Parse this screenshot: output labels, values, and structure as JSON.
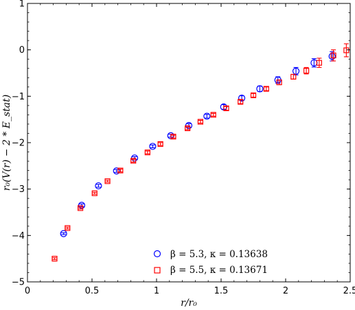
{
  "chart_data": {
    "type": "scatter",
    "title": "",
    "xlabel": "r/r₀",
    "ylabel": "r₀(V(r) − 2 * E_stat)",
    "xlim": [
      0,
      2.5
    ],
    "ylim": [
      -5,
      1
    ],
    "xticks": [
      0,
      0.5,
      1,
      1.5,
      2,
      2.5
    ],
    "xtick_labels": [
      "0",
      "0.5",
      "1",
      "1.5",
      "2",
      "2.5"
    ],
    "yticks": [
      -5,
      -4,
      -3,
      -2,
      -1,
      0,
      1
    ],
    "ytick_labels": [
      "−5",
      "−4",
      "−3",
      "−2",
      "−1",
      "0",
      "1"
    ],
    "grid": false,
    "legend_position": "bottom-center",
    "series": [
      {
        "name": "β = 5.3, κ = 0.13638",
        "marker": "circle",
        "color": "#0000ff",
        "points": [
          {
            "x": 0.28,
            "y": -3.96,
            "err": 0.02
          },
          {
            "x": 0.42,
            "y": -3.35,
            "err": 0.03
          },
          {
            "x": 0.55,
            "y": -2.93,
            "err": 0.03
          },
          {
            "x": 0.69,
            "y": -2.61,
            "err": 0.03
          },
          {
            "x": 0.83,
            "y": -2.33,
            "err": 0.03
          },
          {
            "x": 0.97,
            "y": -2.08,
            "err": 0.03
          },
          {
            "x": 1.11,
            "y": -1.85,
            "err": 0.03
          },
          {
            "x": 1.25,
            "y": -1.63,
            "err": 0.04
          },
          {
            "x": 1.39,
            "y": -1.43,
            "err": 0.04
          },
          {
            "x": 1.52,
            "y": -1.23,
            "err": 0.05
          },
          {
            "x": 1.66,
            "y": -1.04,
            "err": 0.05
          },
          {
            "x": 1.8,
            "y": -0.84,
            "err": 0.06
          },
          {
            "x": 1.94,
            "y": -0.65,
            "err": 0.07
          },
          {
            "x": 2.08,
            "y": -0.46,
            "err": 0.08
          },
          {
            "x": 2.22,
            "y": -0.28,
            "err": 0.09
          },
          {
            "x": 2.36,
            "y": -0.14,
            "err": 0.1
          }
        ]
      },
      {
        "name": "β = 5.5, κ = 0.13671",
        "marker": "square",
        "color": "#ff0000",
        "points": [
          {
            "x": 0.21,
            "y": -4.5,
            "err": 0.02
          },
          {
            "x": 0.31,
            "y": -3.84,
            "err": 0.02
          },
          {
            "x": 0.41,
            "y": -3.41,
            "err": 0.02
          },
          {
            "x": 0.52,
            "y": -3.09,
            "err": 0.02
          },
          {
            "x": 0.62,
            "y": -2.83,
            "err": 0.02
          },
          {
            "x": 0.72,
            "y": -2.6,
            "err": 0.03
          },
          {
            "x": 0.82,
            "y": -2.39,
            "err": 0.03
          },
          {
            "x": 0.93,
            "y": -2.21,
            "err": 0.03
          },
          {
            "x": 1.03,
            "y": -2.03,
            "err": 0.03
          },
          {
            "x": 1.13,
            "y": -1.87,
            "err": 0.03
          },
          {
            "x": 1.24,
            "y": -1.69,
            "err": 0.03
          },
          {
            "x": 1.34,
            "y": -1.55,
            "err": 0.03
          },
          {
            "x": 1.44,
            "y": -1.4,
            "err": 0.03
          },
          {
            "x": 1.54,
            "y": -1.26,
            "err": 0.04
          },
          {
            "x": 1.65,
            "y": -1.12,
            "err": 0.04
          },
          {
            "x": 1.75,
            "y": -0.98,
            "err": 0.04
          },
          {
            "x": 1.85,
            "y": -0.84,
            "err": 0.04
          },
          {
            "x": 1.95,
            "y": -0.7,
            "err": 0.05
          },
          {
            "x": 2.06,
            "y": -0.58,
            "err": 0.05
          },
          {
            "x": 2.16,
            "y": -0.45,
            "err": 0.07
          },
          {
            "x": 2.26,
            "y": -0.28,
            "err": 0.1
          },
          {
            "x": 2.37,
            "y": -0.12,
            "err": 0.12
          },
          {
            "x": 2.47,
            "y": -0.01,
            "err": 0.14
          }
        ]
      }
    ]
  }
}
